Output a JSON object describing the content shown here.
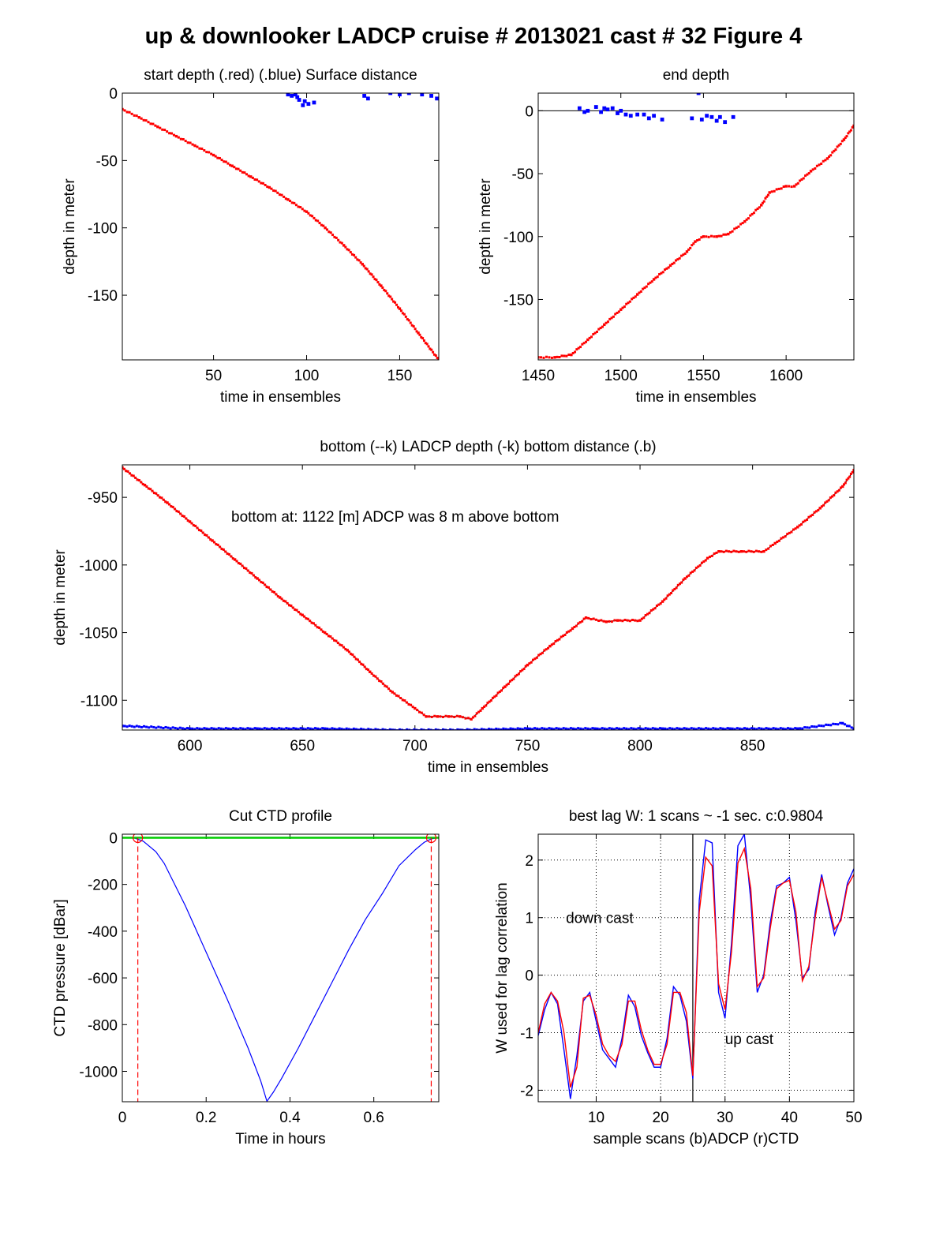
{
  "figure_title": "up & downlooker LADCP cruise # 2013021 cast # 32    Figure 4",
  "colors": {
    "red": "#ff0000",
    "blue": "#0000ff",
    "green": "#00cc00",
    "black": "#000000"
  },
  "chart_data": [
    {
      "id": "start_depth",
      "type": "scatter",
      "title": "start depth (.red) (.blue) Surface distance",
      "xlabel": "time in ensembles",
      "ylabel": "depth in meter",
      "xlim": [
        1,
        171
      ],
      "ylim": [
        -198,
        0
      ],
      "xticks": [
        50,
        100,
        150
      ],
      "yticks": [
        0,
        -50,
        -100,
        -150
      ],
      "grid": false,
      "series": [
        {
          "color": "red",
          "marker": "dot",
          "x": [
            1,
            10,
            20,
            30,
            40,
            50,
            60,
            70,
            80,
            90,
            100,
            110,
            120,
            130,
            140,
            150,
            160,
            171
          ],
          "y": [
            -12,
            -18,
            -25,
            -32,
            -39,
            -46,
            -54,
            -62,
            -70,
            -79,
            -88,
            -100,
            -113,
            -127,
            -143,
            -160,
            -178,
            -198
          ]
        },
        {
          "color": "blue",
          "marker": "dot",
          "x": [
            90,
            92,
            94,
            95,
            96,
            98,
            99,
            101,
            104,
            131,
            133,
            145,
            150,
            155,
            162,
            167,
            170
          ],
          "y": [
            -1,
            -2,
            -1,
            -3,
            -5,
            -9,
            -6,
            -8,
            -7,
            -2,
            -4,
            0,
            -1,
            0,
            -1,
            -2,
            -4
          ]
        }
      ]
    },
    {
      "id": "end_depth",
      "type": "scatter",
      "title": "end depth",
      "xlabel": "time in ensembles",
      "ylabel": "depth in meter",
      "xlim": [
        1450,
        1641
      ],
      "ylim": [
        -198,
        14
      ],
      "xticks": [
        1450,
        1500,
        1550,
        1600
      ],
      "yticks": [
        0,
        -50,
        -100,
        -150
      ],
      "grid": false,
      "reference_line_y": 0,
      "series": [
        {
          "color": "red",
          "marker": "dot",
          "x": [
            1450,
            1460,
            1470,
            1480,
            1490,
            1500,
            1510,
            1520,
            1530,
            1540,
            1545,
            1550,
            1558,
            1565,
            1575,
            1585,
            1590,
            1600,
            1605,
            1615,
            1625,
            1635,
            1641
          ],
          "y": [
            -196,
            -196,
            -194,
            -182,
            -170,
            -158,
            -146,
            -134,
            -123,
            -112,
            -104,
            -100,
            -100,
            -98,
            -88,
            -75,
            -65,
            -60,
            -60,
            -48,
            -38,
            -23,
            -12
          ]
        },
        {
          "color": "blue",
          "marker": "dot",
          "x": [
            1475,
            1478,
            1480,
            1485,
            1488,
            1490,
            1492,
            1495,
            1498,
            1500,
            1503,
            1506,
            1510,
            1514,
            1517,
            1520,
            1525,
            1543,
            1547,
            1549,
            1552,
            1555,
            1558,
            1560,
            1563,
            1568
          ],
          "y": [
            2,
            -1,
            0,
            3,
            -1,
            2,
            1,
            2,
            -2,
            0,
            -3,
            -4,
            -3,
            -3,
            -6,
            -4,
            -7,
            -6,
            14,
            -7,
            -4,
            -5,
            -8,
            -5,
            -9,
            -5
          ]
        }
      ]
    },
    {
      "id": "bottom",
      "type": "line",
      "title": "bottom (--k) LADCP depth (-k) bottom distance (.b)",
      "xlabel": "time in ensembles",
      "ylabel": "depth in meter",
      "xlim": [
        570,
        895
      ],
      "ylim": [
        -1122,
        -926
      ],
      "xticks": [
        600,
        650,
        700,
        750,
        800,
        850
      ],
      "yticks": [
        -950,
        -1000,
        -1050,
        -1100
      ],
      "grid": false,
      "annotation": "bottom at: 1122 [m]    ADCP was 8 m above bottom",
      "bottom_depth": -1122,
      "series": [
        {
          "color": "red",
          "marker": "dot",
          "line": "black",
          "x": [
            570,
            580,
            590,
            600,
            610,
            620,
            630,
            640,
            650,
            660,
            670,
            680,
            690,
            700,
            705,
            710,
            715,
            720,
            725,
            730,
            740,
            750,
            760,
            770,
            776,
            785,
            790,
            800,
            810,
            820,
            830,
            835,
            845,
            855,
            860,
            870,
            880,
            890,
            895
          ],
          "y": [
            -928,
            -941,
            -954,
            -968,
            -982,
            -996,
            -1010,
            -1024,
            -1037,
            -1050,
            -1063,
            -1079,
            -1094,
            -1106,
            -1112,
            -1112,
            -1112,
            -1112,
            -1114,
            -1106,
            -1090,
            -1074,
            -1060,
            -1047,
            -1039,
            -1042,
            -1041,
            -1041,
            -1027,
            -1010,
            -995,
            -990,
            -990,
            -990,
            -984,
            -972,
            -958,
            -942,
            -930
          ]
        },
        {
          "color": "blue",
          "marker": "dot",
          "x": [
            570,
            600,
            630,
            660,
            690,
            720,
            750,
            780,
            810,
            840,
            870,
            890,
            895
          ],
          "y": [
            -1119,
            -1121,
            -1121,
            -1121,
            -1122,
            -1122,
            -1121,
            -1121,
            -1121,
            -1121,
            -1121,
            -1117,
            -1121
          ]
        }
      ]
    },
    {
      "id": "cut_ctd",
      "type": "line",
      "title": "Cut CTD profile",
      "xlabel": "Time in hours",
      "ylabel": "CTD pressure [dBar]",
      "xlim": [
        0,
        0.755
      ],
      "ylim": [
        -1130,
        15
      ],
      "xticks": [
        0,
        0.2,
        0.4,
        0.6
      ],
      "xticklabels": [
        "0",
        "0.2",
        "0.4",
        "0.6"
      ],
      "yticks": [
        0,
        -200,
        -400,
        -600,
        -800,
        -1000
      ],
      "grid": false,
      "cut_lines_x": [
        0.037,
        0.737
      ],
      "series": [
        {
          "color": "blue",
          "x": [
            0,
            0.03,
            0.05,
            0.08,
            0.1,
            0.15,
            0.2,
            0.25,
            0.3,
            0.33,
            0.345,
            0.36,
            0.38,
            0.42,
            0.46,
            0.5,
            0.54,
            0.58,
            0.62,
            0.66,
            0.7,
            0.72,
            0.737,
            0.755
          ],
          "y": [
            0,
            -2,
            -15,
            -60,
            -110,
            -290,
            -490,
            -690,
            -900,
            -1040,
            -1128,
            -1090,
            -1030,
            -900,
            -760,
            -620,
            -480,
            -350,
            -240,
            -120,
            -50,
            -20,
            -5,
            0
          ]
        },
        {
          "color": "green",
          "x": [
            0,
            0.037,
            0.737,
            0.755
          ],
          "y": [
            0,
            0,
            0,
            0
          ]
        }
      ]
    },
    {
      "id": "lag",
      "type": "line",
      "title": "best lag W: 1 scans ~ -1 sec.  c:0.9804",
      "xlabel": "sample scans (b)ADCP (r)CTD",
      "ylabel": "W used for lag correlation",
      "xlim": [
        1,
        50
      ],
      "ylim": [
        -2.2,
        2.45
      ],
      "xticks": [
        10,
        20,
        30,
        40,
        50
      ],
      "yticks": [
        -2,
        -1,
        0,
        1,
        2
      ],
      "grid": true,
      "annotations": [
        {
          "text": "down cast",
          "x": 5.3,
          "y": 1.0
        },
        {
          "text": "up cast",
          "x": 30,
          "y": -1.1
        }
      ],
      "vline_x": 25,
      "x": [
        1,
        2,
        3,
        4,
        5,
        6,
        7,
        8,
        9,
        10,
        11,
        12,
        13,
        14,
        15,
        16,
        17,
        18,
        19,
        20,
        21,
        22,
        23,
        24,
        25,
        26,
        27,
        28,
        29,
        30,
        31,
        32,
        33,
        34,
        35,
        36,
        37,
        38,
        39,
        40,
        41,
        42,
        43,
        44,
        45,
        46,
        47,
        48,
        49,
        50
      ],
      "series": [
        {
          "color": "blue",
          "values": [
            -1.05,
            -0.6,
            -0.3,
            -0.5,
            -1.3,
            -2.15,
            -1.4,
            -0.45,
            -0.3,
            -0.8,
            -1.3,
            -1.45,
            -1.6,
            -1.1,
            -0.35,
            -0.55,
            -1.05,
            -1.35,
            -1.6,
            -1.6,
            -1.1,
            -0.2,
            -0.35,
            -0.8,
            -1.8,
            1.3,
            2.35,
            2.3,
            -0.3,
            -0.75,
            0.55,
            2.25,
            2.45,
            1.3,
            -0.3,
            0.0,
            0.9,
            1.55,
            1.6,
            1.7,
            0.95,
            -0.05,
            0.1,
            1.1,
            1.75,
            1.2,
            0.7,
            1.0,
            1.6,
            1.85
          ]
        },
        {
          "color": "red",
          "values": [
            -1.0,
            -0.5,
            -0.3,
            -0.45,
            -1.0,
            -1.95,
            -1.6,
            -0.4,
            -0.35,
            -0.7,
            -1.2,
            -1.4,
            -1.5,
            -1.2,
            -0.45,
            -0.45,
            -0.95,
            -1.3,
            -1.55,
            -1.55,
            -1.2,
            -0.3,
            -0.3,
            -0.65,
            -1.75,
            1.1,
            2.05,
            1.9,
            -0.15,
            -0.6,
            0.4,
            1.95,
            2.2,
            1.5,
            -0.2,
            -0.05,
            0.8,
            1.5,
            1.6,
            1.65,
            1.1,
            -0.1,
            0.15,
            1.0,
            1.7,
            1.25,
            0.8,
            0.95,
            1.55,
            1.75
          ]
        }
      ]
    }
  ]
}
